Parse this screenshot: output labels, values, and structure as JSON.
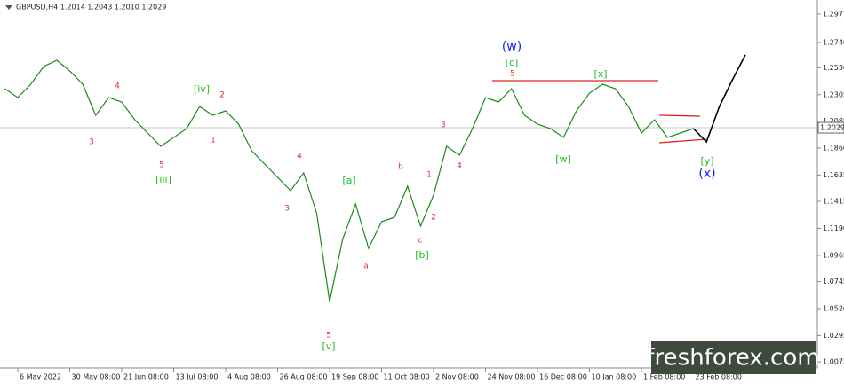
{
  "header": "GBPUSD,H4  1.2014 1.2043 1.2010 1.2029",
  "chart_data": {
    "type": "line",
    "categories": [
      null,
      "6 May 2022",
      null,
      null,
      null,
      "30 May 08:00",
      null,
      null,
      null,
      "21 Jun 08:00",
      null,
      null,
      null,
      "13 Jul 08:00",
      null,
      null,
      null,
      "4 Aug 08:00",
      null,
      null,
      null,
      "26 Aug 08:00",
      null,
      null,
      null,
      "19 Sep 08:00",
      null,
      null,
      null,
      "11 Oct 08:00",
      null,
      null,
      null,
      "2 Nov 08:00",
      null,
      null,
      null,
      "24 Nov 08:00",
      null,
      null,
      null,
      "16 Dec 08:00",
      null,
      null,
      null,
      "10 Jan 08:00",
      null,
      null,
      null,
      "1 Feb 08:00",
      null,
      null,
      null,
      "23 Feb 08:00",
      null,
      null,
      null,
      null
    ],
    "series": [
      {
        "color": "#1a8a1a",
        "values": [
          1.2355,
          1.2281,
          1.2392,
          1.254,
          1.2592,
          1.2503,
          1.2392,
          1.2133,
          1.2281,
          1.2244,
          1.2096,
          1.1985,
          1.1874,
          1.1948,
          1.2022,
          1.2207,
          1.2133,
          1.217,
          1.2059,
          1.1837,
          1.1726,
          1.1615,
          1.1504,
          1.1652,
          1.1319,
          1.0579,
          1.1097,
          1.1393,
          1.1023,
          1.1245,
          1.1282,
          1.1541,
          1.1208,
          1.1467,
          1.1874,
          1.18,
          1.2022,
          1.2281,
          1.2244,
          1.2355,
          1.2133,
          1.2059,
          1.2022,
          1.1948,
          1.217,
          1.2318,
          1.2392,
          1.2355,
          1.2207,
          1.1985,
          1.2096,
          1.1948,
          1.1985,
          1.2022,
          null,
          null,
          null,
          null
        ]
      },
      {
        "color": "#000000",
        "values": [
          null,
          null,
          null,
          null,
          null,
          null,
          null,
          null,
          null,
          null,
          null,
          null,
          null,
          null,
          null,
          null,
          null,
          null,
          null,
          null,
          null,
          null,
          null,
          null,
          null,
          null,
          null,
          null,
          null,
          null,
          null,
          null,
          null,
          null,
          null,
          null,
          null,
          null,
          null,
          null,
          null,
          null,
          null,
          null,
          null,
          null,
          null,
          null,
          null,
          null,
          null,
          null,
          null,
          1.2022,
          1.1911,
          1.2207,
          1.2429,
          1.2637
        ]
      }
    ],
    "current_price": 1.2029,
    "ylim": [
      1.0024,
      1.3095
    ],
    "yticks": [
      1.2977,
      {
        "value": 1.274,
        "label": "1.2740"
      },
      {
        "value": 1.253,
        "label": "1.2530"
      },
      1.2305,
      1.2085,
      {
        "value": 1.186,
        "label": "1.1860"
      },
      1.1635,
      1.1415,
      {
        "value": 1.119,
        "label": "1.1190"
      },
      1.0965,
      1.0745,
      {
        "value": 1.052,
        "label": "1.0520"
      },
      1.0295,
      1.0075
    ],
    "annotations": [
      {
        "text": "(w)",
        "color": "#1a1aff"
      },
      {
        "text": "[c]",
        "color": "#22bb22"
      },
      {
        "text": "5",
        "color": "#e03030"
      },
      {
        "text": "[x]",
        "color": "#22bb22"
      },
      {
        "text": "[w]",
        "color": "#22bb22"
      },
      {
        "text": "[y]",
        "color": "#22bb22"
      },
      {
        "text": "(x)",
        "color": "#1a1aff"
      },
      {
        "text": "4",
        "color": "#e03030"
      },
      {
        "text": "[iv]",
        "color": "#22bb22"
      },
      {
        "text": "2",
        "color": "#e03030"
      },
      {
        "text": "3",
        "color": "#e03030"
      },
      {
        "text": "1",
        "color": "#e03030"
      },
      {
        "text": "5",
        "color": "#e03030"
      },
      {
        "text": "[iii]",
        "color": "#22bb22"
      },
      {
        "text": "4",
        "color": "#e03030"
      },
      {
        "text": "3",
        "color": "#e03030"
      },
      {
        "text": "[a]",
        "color": "#22bb22"
      },
      {
        "text": "a",
        "color": "#e03030"
      },
      {
        "text": "5",
        "color": "#e03030"
      },
      {
        "text": "[v]",
        "color": "#22bb22"
      },
      {
        "text": "b",
        "color": "#e03030"
      },
      {
        "text": "1",
        "color": "#e03030"
      },
      {
        "text": "2",
        "color": "#e03030"
      },
      {
        "text": "c",
        "color": "#e03030"
      },
      {
        "text": "[b]",
        "color": "#22bb22"
      },
      {
        "text": "3",
        "color": "#e03030"
      },
      {
        "text": "4",
        "color": "#e03030"
      }
    ]
  },
  "watermark": "freshforex.com"
}
